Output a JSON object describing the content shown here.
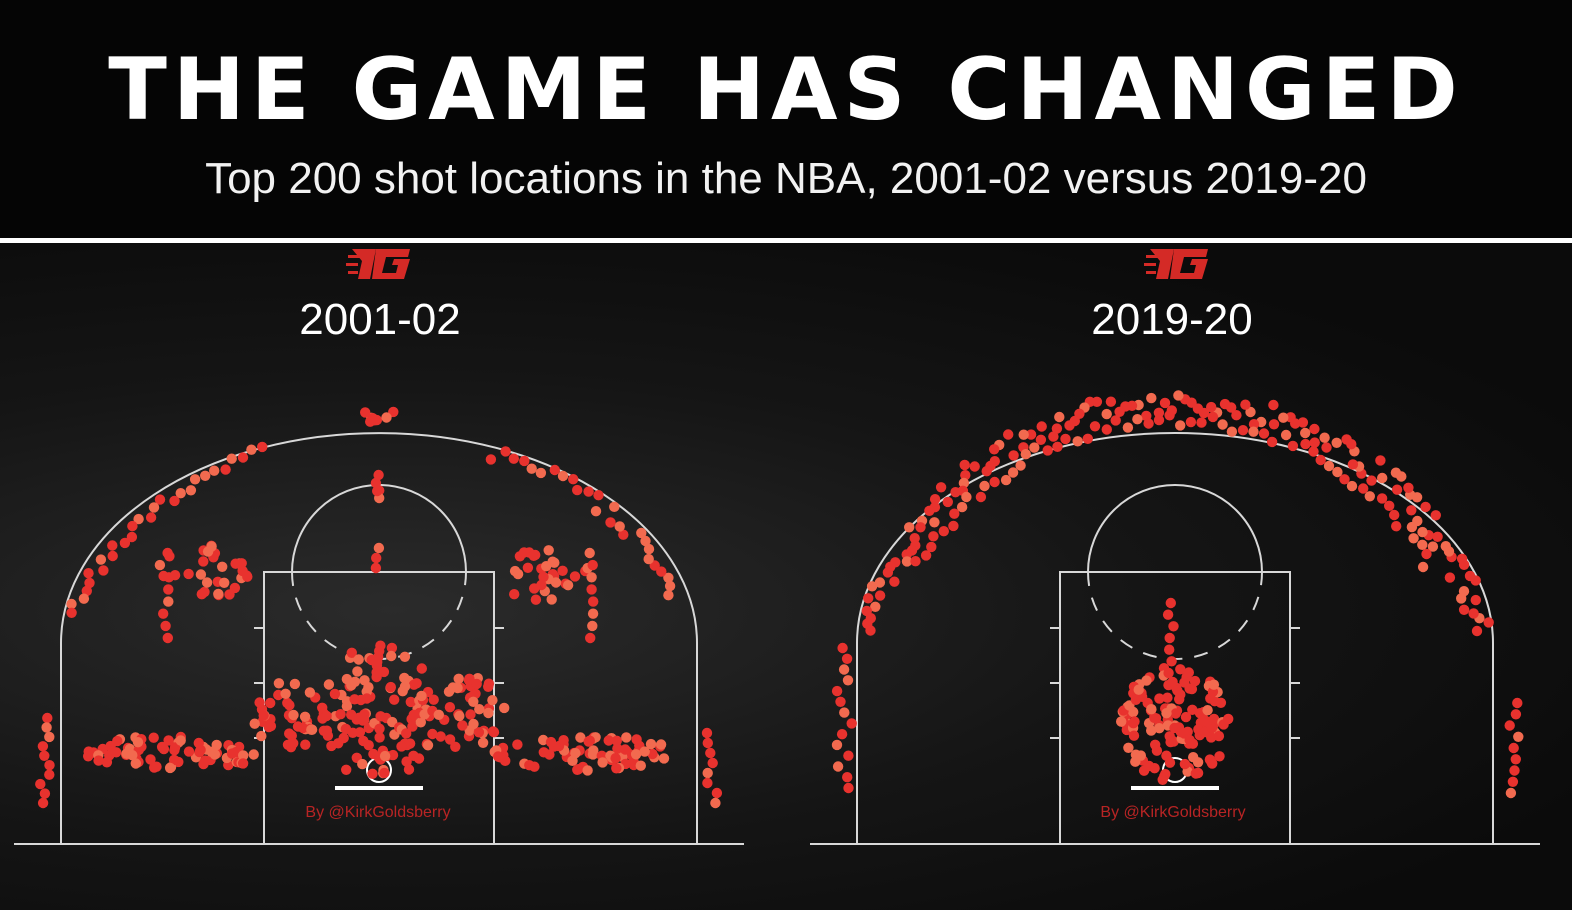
{
  "header": {
    "title": "THE GAME HAS CHANGED",
    "subtitle": "Top 200 shot locations in the NBA, 2001-02 versus 2019-20"
  },
  "colors": {
    "background": "#0a0a0a",
    "court_lines": "#d8d8d8",
    "shot_dot": "#e8322e",
    "shot_dot_light": "#f26a4f",
    "credit_text": "#b82424"
  },
  "chart_data": [
    {
      "type": "scatter",
      "title": "2001-02",
      "description_kind": "half-court shot chart, hexagonal shot markers",
      "credit": "By @KirkGoldsberry",
      "logo_icon": "ng-logo-icon",
      "shot_zones": [
        {
          "zone": "restricted area / paint",
          "relative_density": "very high"
        },
        {
          "zone": "mid-range baseline corners",
          "relative_density": "high"
        },
        {
          "zone": "mid-range elbows",
          "relative_density": "medium"
        },
        {
          "zone": "above-the-break three",
          "relative_density": "medium"
        },
        {
          "zone": "corner three",
          "relative_density": "medium"
        },
        {
          "zone": "top of key",
          "relative_density": "low"
        }
      ]
    },
    {
      "type": "scatter",
      "title": "2019-20",
      "description_kind": "half-court shot chart, hexagonal shot markers",
      "credit": "By @KirkGoldsberry",
      "logo_icon": "ng-logo-icon",
      "shot_zones": [
        {
          "zone": "restricted area / paint",
          "relative_density": "very high"
        },
        {
          "zone": "above-the-break three",
          "relative_density": "very high"
        },
        {
          "zone": "corner three",
          "relative_density": "high"
        },
        {
          "zone": "mid-range",
          "relative_density": "none"
        }
      ]
    }
  ]
}
